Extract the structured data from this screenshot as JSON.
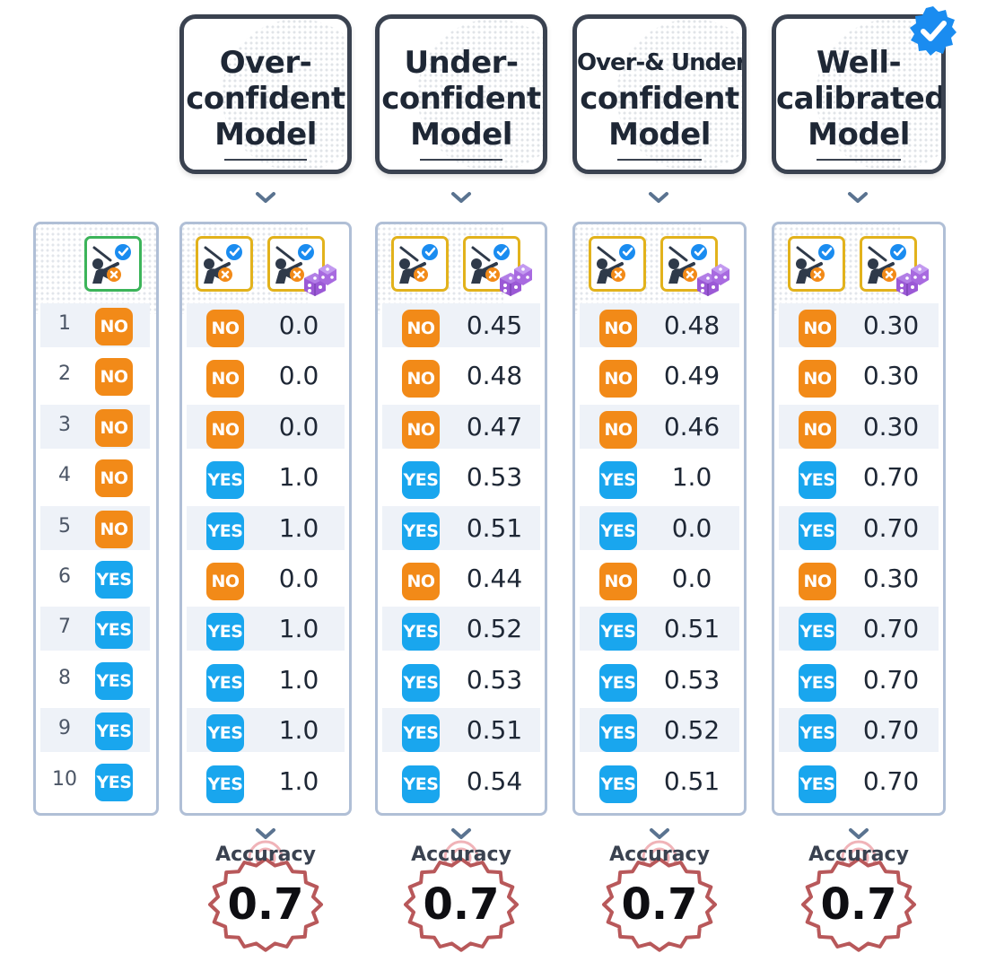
{
  "colors": {
    "no_badge": "#f28a18",
    "yes_badge": "#19a6ee",
    "ground_truth_border": "#3cb45a",
    "model_icon_border": "#e2b21c",
    "header_border": "#3a4250",
    "panel_border": "#b0bfd6",
    "verified_badge": "#1a8cf0",
    "dice": "#9b59d6",
    "accuracy_seal": "#b8585a"
  },
  "ground_truth": {
    "icon": "golfer-check-x-icon",
    "indices": [
      "1",
      "2",
      "3",
      "4",
      "5",
      "6",
      "7",
      "8",
      "9",
      "10"
    ],
    "labels": [
      "NO",
      "NO",
      "NO",
      "NO",
      "NO",
      "YES",
      "YES",
      "YES",
      "YES",
      "YES"
    ]
  },
  "models": [
    {
      "title_lines": [
        "Over-",
        "confident",
        "Model"
      ],
      "labels": [
        "NO",
        "NO",
        "NO",
        "YES",
        "YES",
        "NO",
        "YES",
        "YES",
        "YES",
        "YES"
      ],
      "values": [
        "0.0",
        "0.0",
        "0.0",
        "1.0",
        "1.0",
        "0.0",
        "1.0",
        "1.0",
        "1.0",
        "1.0"
      ],
      "accuracy_label": "Accuracy",
      "accuracy_value": "0.7"
    },
    {
      "title_lines": [
        "Under-",
        "confident",
        "Model"
      ],
      "labels": [
        "NO",
        "NO",
        "NO",
        "YES",
        "YES",
        "NO",
        "YES",
        "YES",
        "YES",
        "YES"
      ],
      "values": [
        "0.45",
        "0.48",
        "0.47",
        "0.53",
        "0.51",
        "0.44",
        "0.52",
        "0.53",
        "0.51",
        "0.54"
      ],
      "accuracy_label": "Accuracy",
      "accuracy_value": "0.7"
    },
    {
      "title_lines": [
        "Over-& Under-",
        "confident",
        "Model"
      ],
      "labels": [
        "NO",
        "NO",
        "NO",
        "YES",
        "YES",
        "NO",
        "YES",
        "YES",
        "YES",
        "YES"
      ],
      "values": [
        "0.48",
        "0.49",
        "0.46",
        "1.0",
        "0.0",
        "0.0",
        "0.51",
        "0.53",
        "0.52",
        "0.51"
      ],
      "accuracy_label": "Accuracy",
      "accuracy_value": "0.7"
    },
    {
      "title_lines": [
        "Well-",
        "calibrated",
        "Model"
      ],
      "labels": [
        "NO",
        "NO",
        "NO",
        "YES",
        "YES",
        "NO",
        "YES",
        "YES",
        "YES",
        "YES"
      ],
      "values": [
        "0.30",
        "0.30",
        "0.30",
        "0.70",
        "0.70",
        "0.30",
        "0.70",
        "0.70",
        "0.70",
        "0.70"
      ],
      "accuracy_label": "Accuracy",
      "accuracy_value": "0.7",
      "verified_icon": "verified-badge-icon"
    }
  ]
}
